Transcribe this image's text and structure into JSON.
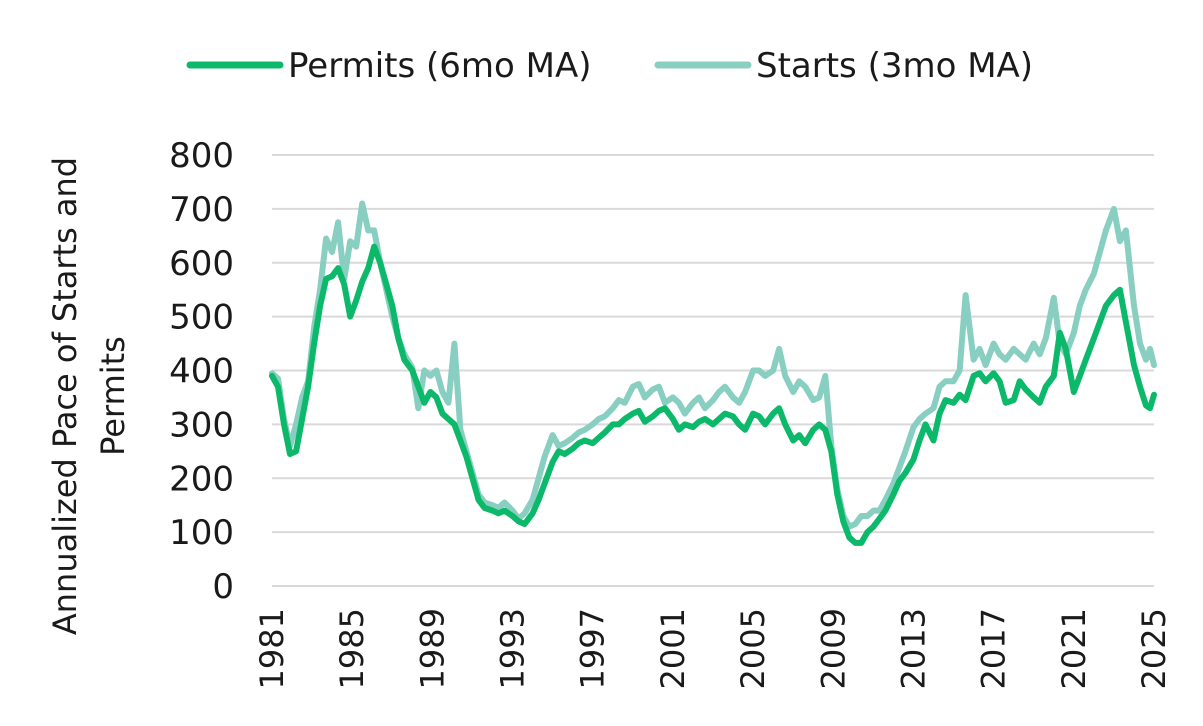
{
  "chart_data": {
    "type": "line",
    "ylabel_lines": [
      "Annualized Pace of Starts and",
      "Permits"
    ],
    "ylim": [
      0,
      800
    ],
    "yticks": [
      0,
      100,
      200,
      300,
      400,
      500,
      600,
      700,
      800
    ],
    "xlim": [
      1981,
      2025
    ],
    "xticks": [
      1981,
      1985,
      1989,
      1993,
      1997,
      2001,
      2005,
      2009,
      2013,
      2017,
      2021,
      2025
    ],
    "grid": true,
    "legend_position": "top",
    "series": [
      {
        "name": "Permits (6mo MA)",
        "color": "#0cb86a",
        "points": [
          [
            1981.0,
            390
          ],
          [
            1981.3,
            370
          ],
          [
            1981.6,
            300
          ],
          [
            1981.9,
            245
          ],
          [
            1982.2,
            250
          ],
          [
            1982.5,
            310
          ],
          [
            1982.8,
            370
          ],
          [
            1983.1,
            450
          ],
          [
            1983.4,
            520
          ],
          [
            1983.7,
            570
          ],
          [
            1984.0,
            575
          ],
          [
            1984.3,
            590
          ],
          [
            1984.6,
            560
          ],
          [
            1984.9,
            500
          ],
          [
            1985.2,
            530
          ],
          [
            1985.5,
            565
          ],
          [
            1985.8,
            590
          ],
          [
            1986.1,
            630
          ],
          [
            1986.4,
            600
          ],
          [
            1986.7,
            560
          ],
          [
            1987.0,
            520
          ],
          [
            1987.3,
            460
          ],
          [
            1987.6,
            420
          ],
          [
            1988.0,
            400
          ],
          [
            1988.3,
            370
          ],
          [
            1988.6,
            340
          ],
          [
            1988.9,
            360
          ],
          [
            1989.2,
            350
          ],
          [
            1989.5,
            320
          ],
          [
            1989.8,
            310
          ],
          [
            1990.1,
            300
          ],
          [
            1990.4,
            270
          ],
          [
            1990.7,
            240
          ],
          [
            1991.0,
            200
          ],
          [
            1991.3,
            160
          ],
          [
            1991.6,
            145
          ],
          [
            1992.0,
            140
          ],
          [
            1992.3,
            135
          ],
          [
            1992.6,
            140
          ],
          [
            1993.0,
            130
          ],
          [
            1993.3,
            120
          ],
          [
            1993.6,
            115
          ],
          [
            1994.0,
            135
          ],
          [
            1994.3,
            160
          ],
          [
            1994.6,
            190
          ],
          [
            1995.0,
            230
          ],
          [
            1995.3,
            250
          ],
          [
            1995.6,
            245
          ],
          [
            1996.0,
            255
          ],
          [
            1996.3,
            265
          ],
          [
            1996.6,
            270
          ],
          [
            1997.0,
            265
          ],
          [
            1997.3,
            275
          ],
          [
            1997.6,
            285
          ],
          [
            1998.0,
            300
          ],
          [
            1998.3,
            300
          ],
          [
            1998.6,
            310
          ],
          [
            1999.0,
            320
          ],
          [
            1999.3,
            325
          ],
          [
            1999.6,
            305
          ],
          [
            2000.0,
            315
          ],
          [
            2000.3,
            325
          ],
          [
            2000.6,
            330
          ],
          [
            2001.0,
            310
          ],
          [
            2001.3,
            290
          ],
          [
            2001.6,
            300
          ],
          [
            2002.0,
            295
          ],
          [
            2002.3,
            305
          ],
          [
            2002.6,
            310
          ],
          [
            2003.0,
            300
          ],
          [
            2003.3,
            310
          ],
          [
            2003.6,
            320
          ],
          [
            2004.0,
            315
          ],
          [
            2004.3,
            300
          ],
          [
            2004.6,
            290
          ],
          [
            2005.0,
            320
          ],
          [
            2005.3,
            315
          ],
          [
            2005.6,
            300
          ],
          [
            2006.0,
            320
          ],
          [
            2006.3,
            330
          ],
          [
            2006.6,
            300
          ],
          [
            2007.0,
            270
          ],
          [
            2007.3,
            280
          ],
          [
            2007.6,
            265
          ],
          [
            2008.0,
            290
          ],
          [
            2008.3,
            300
          ],
          [
            2008.6,
            290
          ],
          [
            2008.9,
            250
          ],
          [
            2009.2,
            170
          ],
          [
            2009.5,
            120
          ],
          [
            2009.8,
            90
          ],
          [
            2010.1,
            80
          ],
          [
            2010.4,
            80
          ],
          [
            2010.7,
            100
          ],
          [
            2011.0,
            110
          ],
          [
            2011.3,
            125
          ],
          [
            2011.6,
            140
          ],
          [
            2012.0,
            170
          ],
          [
            2012.3,
            195
          ],
          [
            2012.6,
            210
          ],
          [
            2013.0,
            235
          ],
          [
            2013.3,
            270
          ],
          [
            2013.6,
            300
          ],
          [
            2014.0,
            270
          ],
          [
            2014.3,
            320
          ],
          [
            2014.6,
            345
          ],
          [
            2015.0,
            340
          ],
          [
            2015.3,
            355
          ],
          [
            2015.6,
            345
          ],
          [
            2016.0,
            390
          ],
          [
            2016.3,
            395
          ],
          [
            2016.6,
            380
          ],
          [
            2017.0,
            395
          ],
          [
            2017.3,
            380
          ],
          [
            2017.6,
            340
          ],
          [
            2018.0,
            345
          ],
          [
            2018.3,
            380
          ],
          [
            2018.6,
            365
          ],
          [
            2019.0,
            350
          ],
          [
            2019.3,
            340
          ],
          [
            2019.6,
            370
          ],
          [
            2020.0,
            390
          ],
          [
            2020.3,
            470
          ],
          [
            2020.6,
            440
          ],
          [
            2021.0,
            360
          ],
          [
            2021.3,
            390
          ],
          [
            2021.6,
            420
          ],
          [
            2022.0,
            460
          ],
          [
            2022.3,
            490
          ],
          [
            2022.6,
            520
          ],
          [
            2023.0,
            540
          ],
          [
            2023.3,
            550
          ],
          [
            2023.6,
            490
          ],
          [
            2024.0,
            410
          ],
          [
            2024.3,
            370
          ],
          [
            2024.6,
            335
          ],
          [
            2024.8,
            330
          ],
          [
            2025.0,
            355
          ]
        ]
      },
      {
        "name": "Starts (3mo MA)",
        "color": "#88cfc1",
        "points": [
          [
            1981.0,
            395
          ],
          [
            1981.3,
            385
          ],
          [
            1981.6,
            310
          ],
          [
            1981.9,
            260
          ],
          [
            1982.2,
            300
          ],
          [
            1982.5,
            350
          ],
          [
            1982.8,
            380
          ],
          [
            1983.1,
            480
          ],
          [
            1983.4,
            550
          ],
          [
            1983.7,
            645
          ],
          [
            1984.0,
            620
          ],
          [
            1984.3,
            675
          ],
          [
            1984.6,
            570
          ],
          [
            1984.9,
            640
          ],
          [
            1985.2,
            630
          ],
          [
            1985.5,
            710
          ],
          [
            1985.8,
            660
          ],
          [
            1986.1,
            660
          ],
          [
            1986.4,
            600
          ],
          [
            1986.7,
            550
          ],
          [
            1987.0,
            500
          ],
          [
            1987.3,
            460
          ],
          [
            1987.6,
            430
          ],
          [
            1988.0,
            405
          ],
          [
            1988.3,
            330
          ],
          [
            1988.6,
            400
          ],
          [
            1988.9,
            390
          ],
          [
            1989.2,
            400
          ],
          [
            1989.5,
            360
          ],
          [
            1989.8,
            340
          ],
          [
            1990.1,
            450
          ],
          [
            1990.4,
            290
          ],
          [
            1990.7,
            250
          ],
          [
            1991.0,
            210
          ],
          [
            1991.3,
            170
          ],
          [
            1991.6,
            155
          ],
          [
            1992.0,
            150
          ],
          [
            1992.3,
            145
          ],
          [
            1992.6,
            155
          ],
          [
            1993.0,
            140
          ],
          [
            1993.3,
            125
          ],
          [
            1993.6,
            135
          ],
          [
            1994.0,
            160
          ],
          [
            1994.3,
            200
          ],
          [
            1994.6,
            240
          ],
          [
            1995.0,
            280
          ],
          [
            1995.3,
            260
          ],
          [
            1995.6,
            265
          ],
          [
            1996.0,
            275
          ],
          [
            1996.3,
            285
          ],
          [
            1996.6,
            290
          ],
          [
            1997.0,
            300
          ],
          [
            1997.3,
            310
          ],
          [
            1997.6,
            315
          ],
          [
            1998.0,
            330
          ],
          [
            1998.3,
            345
          ],
          [
            1998.6,
            340
          ],
          [
            1999.0,
            370
          ],
          [
            1999.3,
            375
          ],
          [
            1999.6,
            350
          ],
          [
            2000.0,
            365
          ],
          [
            2000.3,
            370
          ],
          [
            2000.6,
            340
          ],
          [
            2001.0,
            350
          ],
          [
            2001.3,
            340
          ],
          [
            2001.6,
            320
          ],
          [
            2002.0,
            340
          ],
          [
            2002.3,
            350
          ],
          [
            2002.6,
            330
          ],
          [
            2003.0,
            345
          ],
          [
            2003.3,
            360
          ],
          [
            2003.6,
            370
          ],
          [
            2004.0,
            350
          ],
          [
            2004.3,
            340
          ],
          [
            2004.6,
            360
          ],
          [
            2005.0,
            400
          ],
          [
            2005.3,
            400
          ],
          [
            2005.6,
            390
          ],
          [
            2006.0,
            400
          ],
          [
            2006.3,
            440
          ],
          [
            2006.6,
            390
          ],
          [
            2007.0,
            360
          ],
          [
            2007.3,
            380
          ],
          [
            2007.6,
            370
          ],
          [
            2008.0,
            345
          ],
          [
            2008.3,
            350
          ],
          [
            2008.6,
            390
          ],
          [
            2008.9,
            260
          ],
          [
            2009.2,
            180
          ],
          [
            2009.5,
            130
          ],
          [
            2009.8,
            110
          ],
          [
            2010.1,
            115
          ],
          [
            2010.4,
            130
          ],
          [
            2010.7,
            130
          ],
          [
            2011.0,
            140
          ],
          [
            2011.3,
            140
          ],
          [
            2011.6,
            160
          ],
          [
            2012.0,
            190
          ],
          [
            2012.3,
            220
          ],
          [
            2012.6,
            250
          ],
          [
            2013.0,
            295
          ],
          [
            2013.3,
            310
          ],
          [
            2013.6,
            320
          ],
          [
            2014.0,
            330
          ],
          [
            2014.3,
            370
          ],
          [
            2014.6,
            380
          ],
          [
            2015.0,
            380
          ],
          [
            2015.3,
            400
          ],
          [
            2015.6,
            540
          ],
          [
            2016.0,
            420
          ],
          [
            2016.3,
            440
          ],
          [
            2016.6,
            410
          ],
          [
            2017.0,
            450
          ],
          [
            2017.3,
            430
          ],
          [
            2017.6,
            420
          ],
          [
            2018.0,
            440
          ],
          [
            2018.3,
            430
          ],
          [
            2018.6,
            420
          ],
          [
            2019.0,
            450
          ],
          [
            2019.3,
            430
          ],
          [
            2019.6,
            460
          ],
          [
            2020.0,
            535
          ],
          [
            2020.3,
            450
          ],
          [
            2020.6,
            430
          ],
          [
            2021.0,
            470
          ],
          [
            2021.3,
            520
          ],
          [
            2021.6,
            550
          ],
          [
            2022.0,
            580
          ],
          [
            2022.3,
            620
          ],
          [
            2022.6,
            660
          ],
          [
            2023.0,
            700
          ],
          [
            2023.3,
            640
          ],
          [
            2023.6,
            660
          ],
          [
            2024.0,
            520
          ],
          [
            2024.3,
            450
          ],
          [
            2024.6,
            420
          ],
          [
            2024.8,
            440
          ],
          [
            2025.0,
            410
          ]
        ]
      }
    ]
  }
}
